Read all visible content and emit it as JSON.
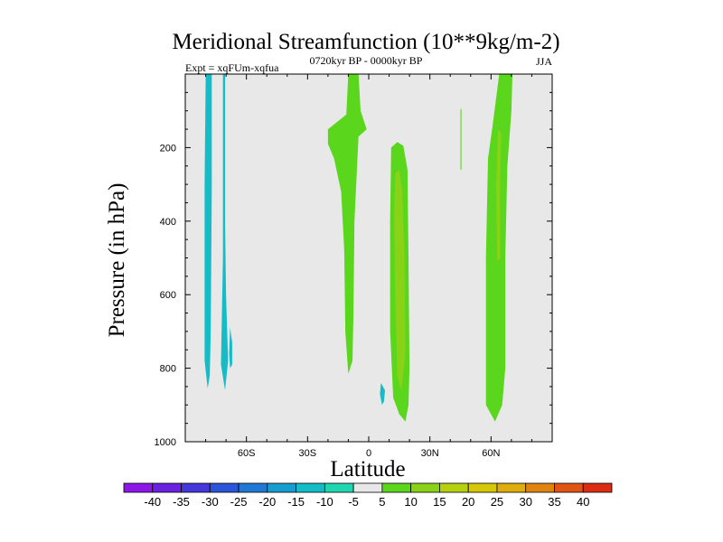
{
  "chart_data": {
    "type": "filled_contour",
    "title": "Meridional Streamfunction (10**9kg/m-2)",
    "subtitle_left": "Expt = xqFUm-xqfua",
    "subtitle_center": "0720kyr BP - 0000kyr BP",
    "subtitle_right": "JJA",
    "xlabel": "Latitude",
    "ylabel": "Pressure (in hPa)",
    "xlim": [
      -90,
      90
    ],
    "ylim": [
      1000,
      0
    ],
    "xticks": [
      {
        "value": -60,
        "label": "60S"
      },
      {
        "value": -30,
        "label": "30S"
      },
      {
        "value": 0,
        "label": "0"
      },
      {
        "value": 30,
        "label": "30N"
      },
      {
        "value": 60,
        "label": "60N"
      }
    ],
    "yticks": [
      {
        "value": 200,
        "label": "200"
      },
      {
        "value": 400,
        "label": "400"
      },
      {
        "value": 600,
        "label": "600"
      },
      {
        "value": 800,
        "label": "800"
      },
      {
        "value": 1000,
        "label": "1000"
      }
    ],
    "background_color": "#e8e8e8",
    "colorbar": {
      "labels": [
        "-40",
        "-35",
        "-30",
        "-25",
        "-20",
        "-15",
        "-10",
        "-5",
        "5",
        "10",
        "15",
        "20",
        "25",
        "30",
        "35",
        "40"
      ],
      "colors": [
        "#8c17e6",
        "#6a22e0",
        "#4437dc",
        "#2a55d8",
        "#1e78d4",
        "#159dd0",
        "#14bcc8",
        "#20d6b0",
        "#e8e8e8",
        "#5ad61c",
        "#8ad218",
        "#b6d010",
        "#d6c808",
        "#deac0c",
        "#e08410",
        "#e05414",
        "#dc2c14"
      ]
    },
    "regions": [
      {
        "level": -10,
        "color": "#14bcc8",
        "points": [
          [
            -80,
            0
          ],
          [
            -77,
            0
          ],
          [
            -77,
            320
          ],
          [
            -77.5,
            700
          ],
          [
            -78,
            820
          ],
          [
            -79,
            855
          ],
          [
            -80.5,
            780
          ],
          [
            -80.5,
            300
          ]
        ]
      },
      {
        "level": -10,
        "color": "#14bcc8",
        "points": [
          [
            -71.5,
            0
          ],
          [
            -70.5,
            0
          ],
          [
            -70.5,
            400
          ],
          [
            -70,
            600
          ],
          [
            -69,
            780
          ],
          [
            -70.5,
            860
          ],
          [
            -72.5,
            790
          ],
          [
            -71.5,
            500
          ]
        ]
      },
      {
        "level": -10,
        "color": "#14bcc8",
        "points": [
          [
            -68,
            690
          ],
          [
            -67,
            730
          ],
          [
            -67,
            790
          ],
          [
            -68,
            800
          ],
          [
            -68.5,
            760
          ]
        ]
      },
      {
        "level": -10,
        "color": "#14bcc8",
        "points": [
          [
            6,
            840
          ],
          [
            8,
            860
          ],
          [
            7.5,
            890
          ],
          [
            6.5,
            900
          ],
          [
            5.5,
            870
          ]
        ]
      },
      {
        "level": 5,
        "color": "#5ad61c",
        "points": [
          [
            -10,
            0
          ],
          [
            -5,
            0
          ],
          [
            -4,
            100
          ],
          [
            -1,
            150
          ],
          [
            -5,
            170
          ],
          [
            -7,
            400
          ],
          [
            -7.5,
            650
          ],
          [
            -8,
            780
          ],
          [
            -10,
            815
          ],
          [
            -11.5,
            700
          ],
          [
            -12,
            480
          ],
          [
            -13.5,
            320
          ],
          [
            -17,
            230
          ],
          [
            -20,
            190
          ],
          [
            -20,
            150
          ],
          [
            -11,
            110
          ]
        ]
      },
      {
        "level": 5,
        "color": "#5ad61c",
        "points": [
          [
            11,
            200
          ],
          [
            14,
            185
          ],
          [
            17,
            195
          ],
          [
            19,
            260
          ],
          [
            19.5,
            500
          ],
          [
            20,
            800
          ],
          [
            19.5,
            900
          ],
          [
            18,
            945
          ],
          [
            15,
            925
          ],
          [
            12,
            880
          ],
          [
            10.5,
            700
          ],
          [
            10.5,
            400
          ]
        ]
      },
      {
        "level": 5,
        "color": "#5ad61c",
        "points": [
          [
            45,
            95
          ],
          [
            45.5,
            95
          ],
          [
            45.5,
            260
          ],
          [
            45,
            260
          ]
        ]
      },
      {
        "level": 5,
        "color": "#5ad61c",
        "points": [
          [
            64,
            0
          ],
          [
            70.5,
            0
          ],
          [
            70,
            100
          ],
          [
            68,
            250
          ],
          [
            67,
            500
          ],
          [
            67,
            800
          ],
          [
            65.5,
            900
          ],
          [
            62,
            945
          ],
          [
            60,
            925
          ],
          [
            57.5,
            900
          ],
          [
            57.5,
            500
          ],
          [
            58.5,
            230
          ],
          [
            61,
            130
          ]
        ]
      },
      {
        "level": 10,
        "color": "#8ad218",
        "points": [
          [
            13,
            270
          ],
          [
            15,
            260
          ],
          [
            16.5,
            320
          ],
          [
            17.5,
            500
          ],
          [
            18,
            760
          ],
          [
            16,
            860
          ],
          [
            14,
            820
          ],
          [
            13,
            600
          ],
          [
            12.5,
            400
          ]
        ]
      },
      {
        "level": 10,
        "color": "#8ad218",
        "points": [
          [
            63.5,
            150
          ],
          [
            65,
            160
          ],
          [
            64.5,
            300
          ],
          [
            64.5,
            500
          ],
          [
            63,
            510
          ],
          [
            62.5,
            300
          ]
        ]
      }
    ]
  }
}
